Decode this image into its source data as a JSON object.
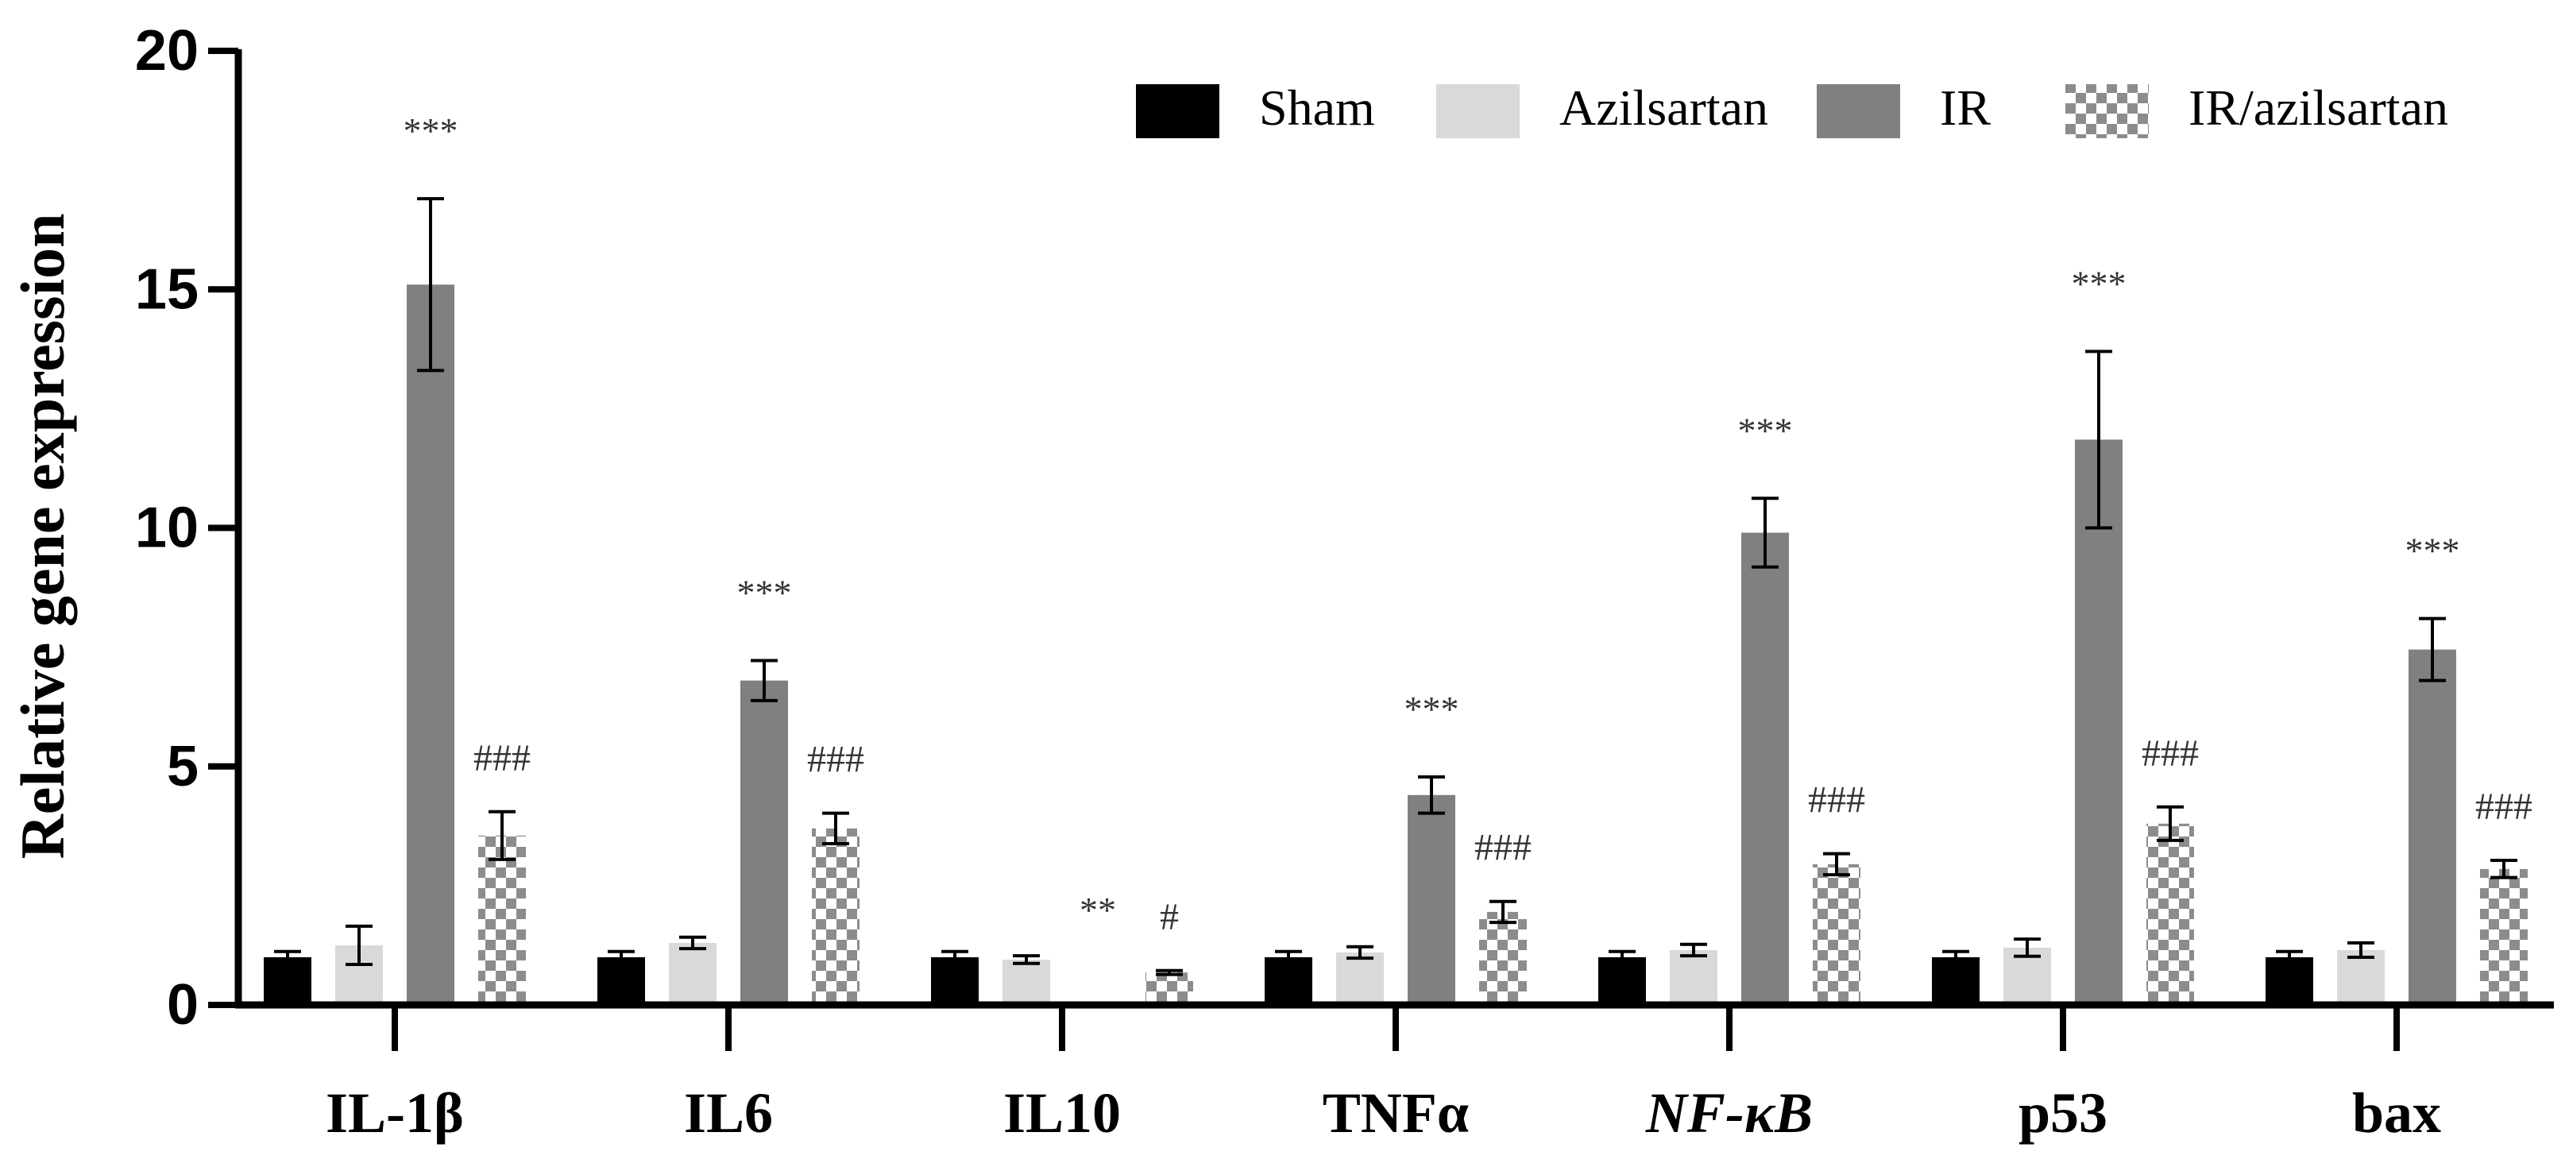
{
  "chart_data": {
    "type": "bar",
    "title": "",
    "xlabel": "",
    "ylabel": "Relative gene expression",
    "ylim": [
      0,
      20
    ],
    "yticks": [
      0,
      5,
      10,
      15,
      20
    ],
    "legend_position": "top-right",
    "categories": [
      "IL-1β",
      "IL6",
      "IL10",
      "TNFα",
      "NF-κB",
      "p53",
      "bax"
    ],
    "italic_categories": [
      "NF-κB"
    ],
    "series": [
      {
        "name": "Sham",
        "color": "#000000",
        "pattern": "solid",
        "values": [
          1.0,
          1.0,
          1.0,
          1.0,
          1.0,
          1.0,
          1.0
        ],
        "errors": [
          0.12,
          0.12,
          0.12,
          0.12,
          0.12,
          0.12,
          0.12
        ],
        "annotations": [
          "",
          "",
          "",
          "",
          "",
          "",
          ""
        ]
      },
      {
        "name": "Azilsartan",
        "color": "#d9d9d9",
        "pattern": "solid",
        "values": [
          1.25,
          1.3,
          0.95,
          1.1,
          1.15,
          1.2,
          1.15
        ],
        "errors": [
          0.4,
          0.12,
          0.08,
          0.12,
          0.12,
          0.18,
          0.15
        ],
        "annotations": [
          "",
          "",
          "",
          "",
          "",
          "",
          ""
        ]
      },
      {
        "name": "IR",
        "color": "#808080",
        "pattern": "solid",
        "values": [
          15.1,
          6.8,
          0.0,
          4.4,
          9.9,
          11.85,
          7.45
        ],
        "errors": [
          1.8,
          0.42,
          0.0,
          0.38,
          0.72,
          1.85,
          0.65
        ],
        "annotations": [
          "***",
          "***",
          "**",
          "***",
          "***",
          "***",
          "***"
        ]
      },
      {
        "name": "IR/azilsartan",
        "color": "#8c8c8c",
        "pattern": "checker",
        "values": [
          3.55,
          3.7,
          0.68,
          1.95,
          2.95,
          3.8,
          2.85
        ],
        "errors": [
          0.5,
          0.32,
          0.04,
          0.22,
          0.22,
          0.35,
          0.18
        ],
        "annotations": [
          "###",
          "###",
          "#",
          "###",
          "###",
          "###",
          "###"
        ]
      }
    ]
  }
}
